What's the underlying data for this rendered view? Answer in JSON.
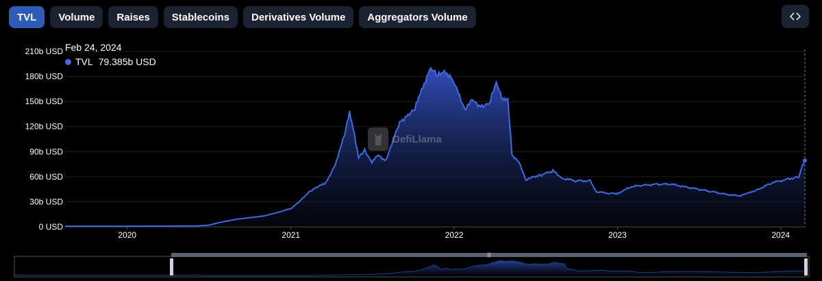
{
  "tabs": [
    {
      "label": "TVL",
      "active": true
    },
    {
      "label": "Volume",
      "active": false
    },
    {
      "label": "Raises",
      "active": false
    },
    {
      "label": "Stablecoins",
      "active": false
    },
    {
      "label": "Derivatives Volume",
      "active": false
    },
    {
      "label": "Aggregators Volume",
      "active": false
    }
  ],
  "embed_icon": "code-icon",
  "watermark": {
    "text": "DefiLlama",
    "icon": "llama-logo"
  },
  "tooltip": {
    "date": "Feb 24, 2024",
    "series": "TVL",
    "value": "79.385b USD"
  },
  "colors": {
    "line": "#4169e1",
    "active_tab": "#2e5bb6",
    "tab_bg": "#1b2232"
  },
  "chart_data": {
    "type": "area",
    "series": [
      {
        "name": "TVL",
        "unit": "b USD"
      }
    ],
    "yticks": [
      "0 USD",
      "30b USD",
      "60b USD",
      "90b USD",
      "120b USD",
      "150b USD",
      "180b USD",
      "210b USD"
    ],
    "ylim": [
      0,
      210
    ],
    "xticks": [
      "2020",
      "2021",
      "2022",
      "2023",
      "2024"
    ],
    "xlim": [
      "2019-08-15",
      "2024-02-24"
    ],
    "grid": true,
    "points": [
      [
        "2019-08-15",
        0.7
      ],
      [
        "2019-12-01",
        0.7
      ],
      [
        "2020-03-01",
        0.9
      ],
      [
        "2020-06-01",
        1.0
      ],
      [
        "2020-07-01",
        2.0
      ],
      [
        "2020-08-01",
        6.0
      ],
      [
        "2020-09-01",
        9.0
      ],
      [
        "2020-10-01",
        11.0
      ],
      [
        "2020-11-01",
        13.0
      ],
      [
        "2020-12-01",
        17.0
      ],
      [
        "2021-01-01",
        22.0
      ],
      [
        "2021-01-20",
        30.0
      ],
      [
        "2021-02-10",
        42.0
      ],
      [
        "2021-03-01",
        48.0
      ],
      [
        "2021-03-20",
        52.0
      ],
      [
        "2021-04-10",
        75.0
      ],
      [
        "2021-05-01",
        110.0
      ],
      [
        "2021-05-12",
        136.0
      ],
      [
        "2021-05-20",
        120.0
      ],
      [
        "2021-06-01",
        82.0
      ],
      [
        "2021-06-15",
        92.0
      ],
      [
        "2021-07-01",
        78.0
      ],
      [
        "2021-07-15",
        85.0
      ],
      [
        "2021-08-01",
        80.0
      ],
      [
        "2021-08-15",
        100.0
      ],
      [
        "2021-09-01",
        125.0
      ],
      [
        "2021-09-20",
        135.0
      ],
      [
        "2021-10-05",
        140.0
      ],
      [
        "2021-10-20",
        165.0
      ],
      [
        "2021-11-10",
        190.0
      ],
      [
        "2021-11-25",
        180.0
      ],
      [
        "2021-12-10",
        188.0
      ],
      [
        "2021-12-28",
        175.0
      ],
      [
        "2022-01-10",
        160.0
      ],
      [
        "2022-01-25",
        142.0
      ],
      [
        "2022-02-10",
        150.0
      ],
      [
        "2022-03-01",
        145.0
      ],
      [
        "2022-03-20",
        148.0
      ],
      [
        "2022-04-05",
        170.0
      ],
      [
        "2022-04-20",
        155.0
      ],
      [
        "2022-05-01",
        153.0
      ],
      [
        "2022-05-10",
        85.0
      ],
      [
        "2022-05-25",
        80.0
      ],
      [
        "2022-06-10",
        55.0
      ],
      [
        "2022-06-25",
        60.0
      ],
      [
        "2022-07-15",
        62.0
      ],
      [
        "2022-08-10",
        67.0
      ],
      [
        "2022-09-01",
        58.0
      ],
      [
        "2022-10-01",
        55.0
      ],
      [
        "2022-11-01",
        55.0
      ],
      [
        "2022-11-15",
        42.0
      ],
      [
        "2022-12-15",
        40.0
      ],
      [
        "2023-01-01",
        40.0
      ],
      [
        "2023-02-01",
        48.0
      ],
      [
        "2023-03-01",
        50.0
      ],
      [
        "2023-04-01",
        51.0
      ],
      [
        "2023-05-01",
        51.0
      ],
      [
        "2023-06-01",
        48.0
      ],
      [
        "2023-07-01",
        45.0
      ],
      [
        "2023-08-01",
        42.0
      ],
      [
        "2023-09-01",
        39.0
      ],
      [
        "2023-10-01",
        37.0
      ],
      [
        "2023-10-20",
        40.0
      ],
      [
        "2023-11-15",
        46.0
      ],
      [
        "2023-12-15",
        53.0
      ],
      [
        "2024-01-15",
        57.0
      ],
      [
        "2024-02-10",
        60.0
      ],
      [
        "2024-02-18",
        72.0
      ],
      [
        "2024-02-24",
        79.4
      ]
    ]
  }
}
